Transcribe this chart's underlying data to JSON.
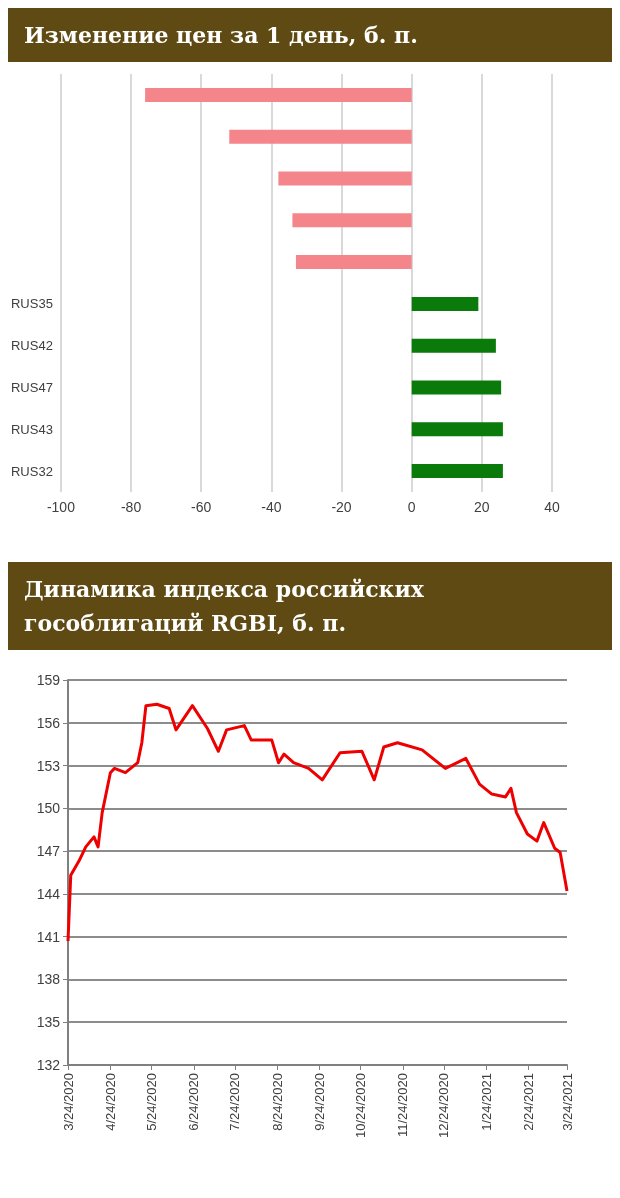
{
  "chart_data": [
    {
      "type": "bar",
      "title": "Изменение цен за 1 день, б. п.",
      "orientation": "horizontal",
      "categories": [
        null,
        null,
        null,
        null,
        null,
        "RUS35",
        "RUS42",
        "RUS47",
        "RUS43",
        "RUS32"
      ],
      "values": [
        -76,
        -52,
        -38,
        -34,
        -33,
        19,
        24,
        25.5,
        26,
        26
      ],
      "colors": [
        "#f4858a",
        "#f4858a",
        "#f4858a",
        "#f4858a",
        "#f4858a",
        "#0a7a0a",
        "#0a7a0a",
        "#0a7a0a",
        "#0a7a0a",
        "#0a7a0a"
      ],
      "xlim": [
        -100,
        40
      ],
      "xticks": [
        -100,
        -80,
        -60,
        -40,
        -20,
        0,
        20,
        40
      ],
      "grid": "x"
    },
    {
      "type": "line",
      "title": "Динамика индекса российских гособлигаций RGBI, б. п.",
      "color": "#ee0000",
      "x": [
        "2020-03-24",
        "2020-03-26",
        "2020-04-01",
        "2020-04-06",
        "2020-04-12",
        "2020-04-15",
        "2020-04-18",
        "2020-04-24",
        "2020-04-27",
        "2020-05-05",
        "2020-05-14",
        "2020-05-17",
        "2020-05-20",
        "2020-05-28",
        "2020-06-06",
        "2020-06-11",
        "2020-06-23",
        "2020-07-04",
        "2020-07-12",
        "2020-07-18",
        "2020-07-31",
        "2020-08-05",
        "2020-08-20",
        "2020-08-25",
        "2020-08-29",
        "2020-09-05",
        "2020-09-16",
        "2020-09-26",
        "2020-10-09",
        "2020-10-25",
        "2020-11-03",
        "2020-11-10",
        "2020-11-20",
        "2020-12-08",
        "2020-12-25",
        "2021-01-09",
        "2021-01-19",
        "2021-01-28",
        "2021-02-07",
        "2021-02-11",
        "2021-02-15",
        "2021-02-23",
        "2021-03-02",
        "2021-03-07",
        "2021-03-15",
        "2021-03-19",
        "2021-03-24"
      ],
      "values": [
        140.7,
        145.3,
        146.3,
        147.3,
        148,
        147.3,
        149.7,
        152.5,
        152.8,
        152.5,
        153.2,
        154.6,
        157.2,
        157.3,
        157,
        155.5,
        157.2,
        155.6,
        154,
        155.5,
        155.8,
        154.8,
        154.8,
        153.2,
        153.8,
        153.2,
        152.8,
        152,
        153.9,
        154,
        152,
        154.3,
        154.6,
        154.1,
        152.8,
        153.5,
        151.7,
        151,
        150.8,
        151.4,
        149.7,
        148.2,
        147.7,
        149,
        147.2,
        146.9,
        144.2
      ],
      "xlim": [
        "2020-03-24",
        "2021-03-24"
      ],
      "xticks": [
        {
          "value": "2020-03-24",
          "label": "3/24/2020"
        },
        {
          "value": "2020-04-24",
          "label": "4/24/2020"
        },
        {
          "value": "2020-05-24",
          "label": "5/24/2020"
        },
        {
          "value": "2020-06-24",
          "label": "6/24/2020"
        },
        {
          "value": "2020-07-24",
          "label": "7/24/2020"
        },
        {
          "value": "2020-08-24",
          "label": "8/24/2020"
        },
        {
          "value": "2020-09-24",
          "label": "9/24/2020"
        },
        {
          "value": "2020-10-24",
          "label": "10/24/2020"
        },
        {
          "value": "2020-11-24",
          "label": "11/24/2020"
        },
        {
          "value": "2020-12-24",
          "label": "12/24/2020"
        },
        {
          "value": "2021-01-24",
          "label": "1/24/2021"
        },
        {
          "value": "2021-02-24",
          "label": "2/24/2021"
        },
        {
          "value": "2021-03-24",
          "label": "3/24/2021"
        }
      ],
      "ylim": [
        132,
        159
      ],
      "yticks": [
        132,
        135,
        138,
        141,
        144,
        147,
        150,
        153,
        156,
        159
      ],
      "grid": "y"
    }
  ]
}
